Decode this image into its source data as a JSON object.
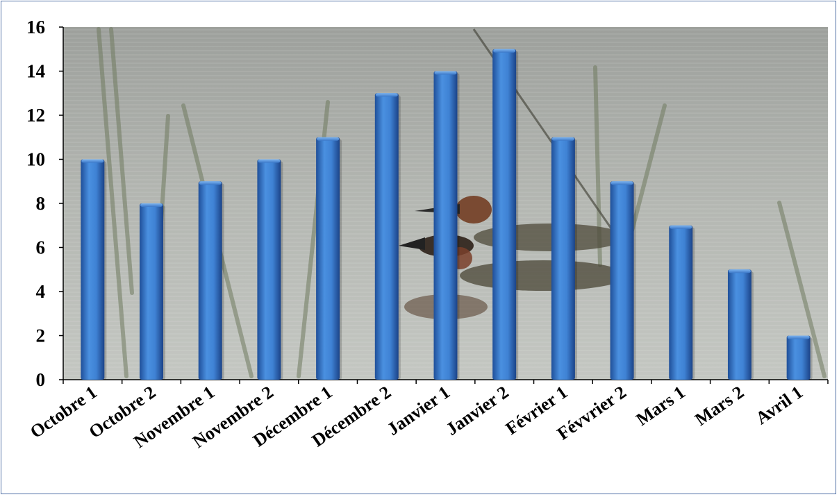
{
  "chart_data": {
    "type": "bar",
    "title": "",
    "xlabel": "",
    "ylabel": "",
    "categories": [
      "Octobre 1",
      "Octobre 2",
      "Novembre 1",
      "Novembre 2",
      "Décembre 1",
      "Décembre 2",
      "Janvier 1",
      "Janvier 2",
      "Février 1",
      "Févvrier 2",
      "Mars 1",
      "Mars 2",
      "Avril 1"
    ],
    "values": [
      10,
      8,
      9,
      10,
      11,
      13,
      14,
      15,
      11,
      9,
      7,
      5,
      2
    ],
    "ylim": [
      0,
      16
    ],
    "yticks": [
      "0",
      "2",
      "4",
      "6",
      "8",
      "10",
      "12",
      "14",
      "16"
    ],
    "grid": false,
    "legend": "none",
    "bar_color": "#3d7fd0",
    "background": "photo of ducks swimming among reeds"
  }
}
